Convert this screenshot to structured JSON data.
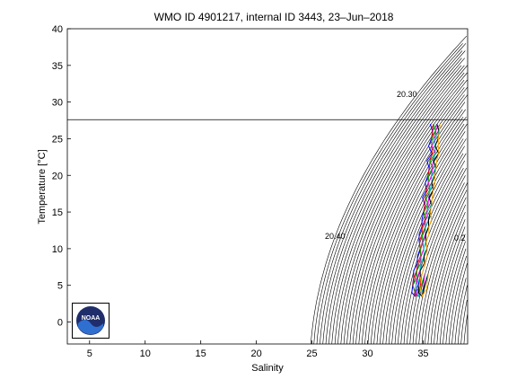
{
  "chart_data": {
    "type": "scatter",
    "title": "WMO ID 4901217, internal ID 3443, 23–Jun–2018",
    "xlabel": "Salinity",
    "ylabel": "Temperature [°C]",
    "xlim": [
      3,
      39
    ],
    "ylim": [
      -3,
      40
    ],
    "x_ticks": [
      "5",
      "10",
      "15",
      "20",
      "25",
      "30",
      "35"
    ],
    "y_ticks": [
      "0",
      "5",
      "10",
      "15",
      "20",
      "25",
      "30",
      "35",
      "40"
    ],
    "reference_line_y": 27.6,
    "density_contour_labels": [
      "20.30",
      "20.40",
      "0.2"
    ],
    "profile_colors": [
      "#0000ff",
      "#ff0000",
      "#00aa00",
      "#ff00ff",
      "#00cccc",
      "#000000",
      "#ffaa00"
    ],
    "profile_points": [
      [
        36.1,
        27.0
      ],
      [
        36.2,
        26.0
      ],
      [
        36.0,
        25.0
      ],
      [
        35.9,
        24.0
      ],
      [
        36.1,
        23.0
      ],
      [
        35.8,
        22.0
      ],
      [
        35.9,
        21.0
      ],
      [
        35.7,
        20.0
      ],
      [
        35.6,
        19.0
      ],
      [
        35.6,
        18.0
      ],
      [
        35.4,
        17.0
      ],
      [
        35.5,
        16.0
      ],
      [
        35.3,
        15.0
      ],
      [
        35.3,
        14.0
      ],
      [
        35.2,
        13.0
      ],
      [
        35.1,
        12.0
      ],
      [
        35.0,
        11.0
      ],
      [
        35.0,
        10.0
      ],
      [
        34.9,
        9.0
      ],
      [
        34.8,
        8.0
      ],
      [
        34.6,
        7.0
      ],
      [
        34.5,
        6.0
      ],
      [
        34.3,
        5.0
      ],
      [
        34.4,
        4.0
      ],
      [
        34.6,
        3.5
      ],
      [
        34.9,
        4.5
      ],
      [
        35.2,
        6.5
      ]
    ]
  },
  "logo": {
    "text": "NOAA",
    "colors": {
      "navy": "#1f2d6b",
      "blue": "#2f6fd0",
      "white": "#ffffff"
    }
  }
}
